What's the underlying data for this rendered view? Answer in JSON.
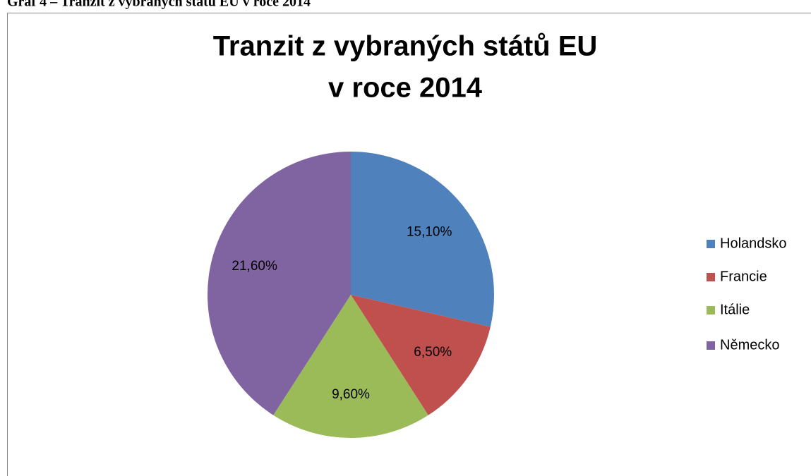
{
  "caption": "Graf 4 – Tranzit z vybraných států EU v roce 2014",
  "chart_data": {
    "type": "pie",
    "title": [
      "Tranzit z vybraných států EU",
      "v roce 2014"
    ],
    "categories": [
      "Holandsko",
      "Francie",
      "Itálie",
      "Německo"
    ],
    "values": [
      15.1,
      6.5,
      9.6,
      21.6
    ],
    "value_labels": [
      "15,10%",
      "6,50%",
      "9,60%",
      "21,60%"
    ],
    "colors": [
      "#4f81bd",
      "#c0504d",
      "#9bbb59",
      "#8064a2"
    ],
    "legend": "right"
  }
}
